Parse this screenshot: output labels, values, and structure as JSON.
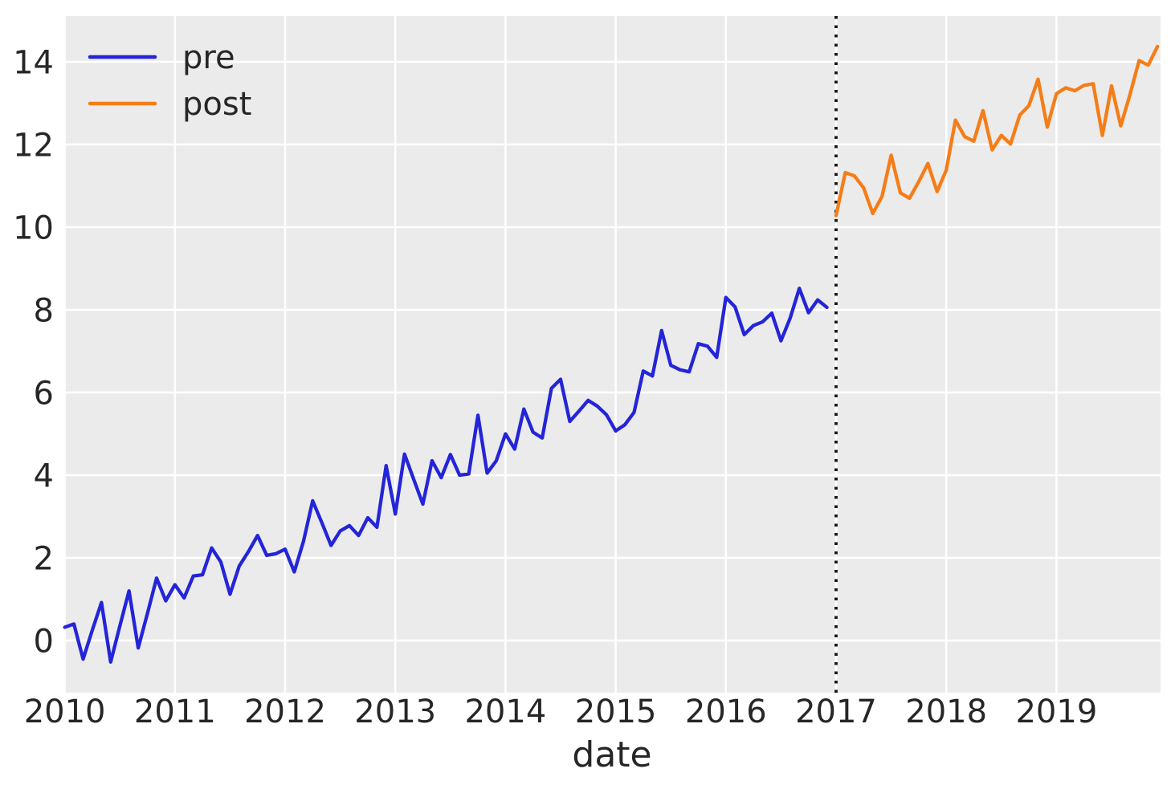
{
  "chart_data": {
    "type": "line",
    "title": "",
    "xlabel": "date",
    "ylabel": "",
    "background_color": "#ebebeb",
    "grid_color": "#ffffff",
    "text_color": "#262626",
    "grid": "on",
    "xlim_years": [
      2009.9956,
      2019.9447
    ],
    "ylim": [
      -1.262,
      15.107
    ],
    "xticks": [
      "2010",
      "2011",
      "2012",
      "2013",
      "2014",
      "2015",
      "2016",
      "2017",
      "2018",
      "2019"
    ],
    "yticks": [
      "0",
      "2",
      "4",
      "6",
      "8",
      "10",
      "12",
      "14"
    ],
    "legend": {
      "position": "upper-left",
      "entries": [
        {
          "label": "pre",
          "color": "#2424d8"
        },
        {
          "label": "post",
          "color": "#f57d17"
        }
      ]
    },
    "vline": {
      "x_year": 2017.0,
      "style": "dotted",
      "color": "#141414"
    },
    "series": [
      {
        "name": "pre",
        "color": "#2424d8",
        "start_year": 2010,
        "start_month": 1,
        "frequency": "monthly",
        "values": [
          0.32,
          0.4,
          -0.45,
          0.25,
          0.92,
          -0.52,
          0.35,
          1.2,
          -0.18,
          0.65,
          1.51,
          0.96,
          1.35,
          1.03,
          1.56,
          1.59,
          2.24,
          1.9,
          1.12,
          1.8,
          2.15,
          2.54,
          2.06,
          2.1,
          2.21,
          1.66,
          2.4,
          3.38,
          2.85,
          2.3,
          2.65,
          2.78,
          2.54,
          2.97,
          2.74,
          4.23,
          3.06,
          4.51,
          3.9,
          3.3,
          4.35,
          3.94,
          4.5,
          4.0,
          4.03,
          5.45,
          4.05,
          4.35,
          5.0,
          4.63,
          5.6,
          5.04,
          4.9,
          6.1,
          6.32,
          5.3,
          5.55,
          5.81,
          5.67,
          5.46,
          5.07,
          5.22,
          5.52,
          6.52,
          6.4,
          7.5,
          6.66,
          6.55,
          6.5,
          7.18,
          7.12,
          6.85,
          8.3,
          8.07,
          7.4,
          7.62,
          7.71,
          7.92,
          7.25,
          7.8,
          8.52,
          7.93,
          8.24,
          8.06
        ]
      },
      {
        "name": "post",
        "color": "#f57d17",
        "start_year": 2017,
        "start_month": 1,
        "frequency": "monthly",
        "values": [
          10.28,
          11.32,
          11.24,
          10.95,
          10.33,
          10.74,
          11.74,
          10.83,
          10.7,
          11.1,
          11.54,
          10.86,
          11.38,
          12.59,
          12.19,
          12.08,
          12.82,
          11.87,
          12.22,
          12.01,
          12.71,
          12.94,
          13.58,
          12.42,
          13.23,
          13.37,
          13.3,
          13.43,
          13.47,
          12.22,
          13.42,
          12.45,
          13.2,
          14.03,
          13.92,
          14.37
        ]
      }
    ]
  }
}
